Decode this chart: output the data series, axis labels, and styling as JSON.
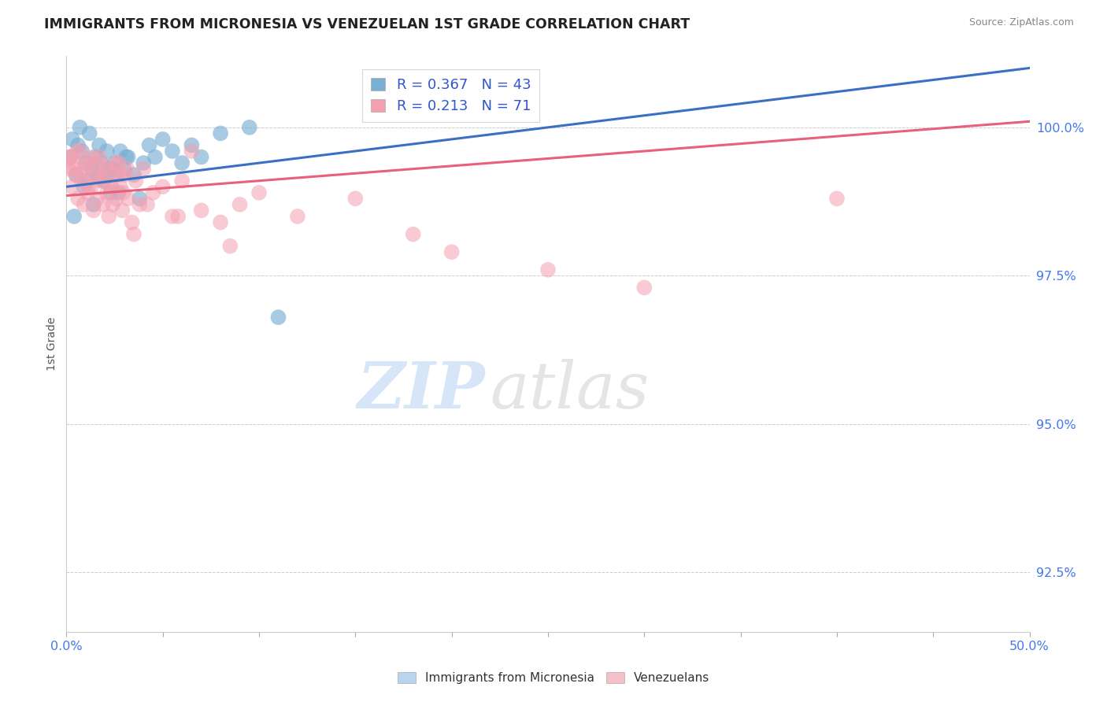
{
  "title": "IMMIGRANTS FROM MICRONESIA VS VENEZUELAN 1ST GRADE CORRELATION CHART",
  "source": "Source: ZipAtlas.com",
  "ylabel": "1st Grade",
  "xlim": [
    0.0,
    50.0
  ],
  "ylim": [
    91.5,
    101.2
  ],
  "yticks": [
    92.5,
    95.0,
    97.5,
    100.0
  ],
  "ytick_labels": [
    "92.5%",
    "95.0%",
    "97.5%",
    "100.0%"
  ],
  "xticks": [
    0.0,
    5.0,
    10.0,
    15.0,
    20.0,
    25.0,
    30.0,
    35.0,
    40.0,
    45.0,
    50.0
  ],
  "xtick_labels_show": [
    "0.0%",
    "50.0%"
  ],
  "blue_r": 0.367,
  "blue_n": 43,
  "pink_r": 0.213,
  "pink_n": 71,
  "blue_color": "#7aafd4",
  "pink_color": "#f4a0b0",
  "blue_line_color": "#3a6fc4",
  "pink_line_color": "#e8607a",
  "legend_label_blue": "Immigrants from Micronesia",
  "legend_label_pink": "Venezuelans",
  "blue_scatter_x": [
    0.2,
    0.3,
    0.5,
    0.6,
    0.7,
    0.8,
    1.0,
    1.1,
    1.2,
    1.3,
    1.5,
    1.6,
    1.7,
    1.8,
    2.0,
    2.1,
    2.2,
    2.3,
    2.5,
    2.6,
    2.8,
    3.0,
    3.2,
    3.5,
    3.8,
    4.0,
    4.3,
    4.6,
    5.0,
    5.5,
    6.0,
    6.5,
    7.0,
    8.0,
    9.5,
    1.4,
    1.9,
    2.4,
    2.7,
    3.1,
    0.4,
    0.9,
    11.0
  ],
  "blue_scatter_y": [
    99.5,
    99.8,
    99.2,
    99.7,
    100.0,
    99.6,
    99.4,
    99.1,
    99.9,
    99.3,
    99.5,
    99.2,
    99.7,
    99.4,
    99.1,
    99.6,
    99.3,
    98.9,
    99.4,
    99.2,
    99.6,
    99.3,
    99.5,
    99.2,
    98.8,
    99.4,
    99.7,
    99.5,
    99.8,
    99.6,
    99.4,
    99.7,
    99.5,
    99.9,
    100.0,
    98.7,
    99.1,
    99.3,
    98.9,
    99.5,
    98.5,
    99.0,
    96.8
  ],
  "pink_scatter_x": [
    0.1,
    0.2,
    0.3,
    0.4,
    0.5,
    0.6,
    0.7,
    0.8,
    0.9,
    1.0,
    1.1,
    1.2,
    1.3,
    1.4,
    1.5,
    1.6,
    1.7,
    1.8,
    1.9,
    2.0,
    2.1,
    2.2,
    2.3,
    2.4,
    2.5,
    2.6,
    2.7,
    2.8,
    2.9,
    3.0,
    3.2,
    3.4,
    3.6,
    3.8,
    4.0,
    4.5,
    5.0,
    5.5,
    6.0,
    7.0,
    8.0,
    9.0,
    10.0,
    12.0,
    15.0,
    18.0,
    20.0,
    25.0,
    30.0,
    40.0,
    0.15,
    0.35,
    0.55,
    0.75,
    0.95,
    1.15,
    1.35,
    1.55,
    1.75,
    1.95,
    2.15,
    2.35,
    2.55,
    2.75,
    2.95,
    3.15,
    4.2,
    5.8,
    3.5,
    6.5,
    8.5
  ],
  "pink_scatter_y": [
    99.3,
    99.5,
    99.0,
    99.4,
    99.2,
    98.8,
    99.6,
    99.1,
    98.7,
    99.3,
    98.9,
    99.4,
    99.0,
    98.6,
    99.2,
    98.8,
    99.5,
    99.1,
    98.7,
    99.3,
    98.9,
    98.5,
    99.0,
    98.7,
    99.2,
    98.8,
    99.4,
    99.0,
    98.6,
    99.2,
    98.8,
    98.4,
    99.1,
    98.7,
    99.3,
    98.9,
    99.0,
    98.5,
    99.1,
    98.6,
    98.4,
    98.7,
    98.9,
    98.5,
    98.8,
    98.2,
    97.9,
    97.6,
    97.3,
    98.8,
    99.5,
    99.3,
    99.6,
    99.2,
    99.4,
    99.0,
    99.5,
    99.2,
    99.4,
    99.1,
    99.3,
    99.0,
    99.4,
    99.2,
    98.9,
    99.3,
    98.7,
    98.5,
    98.2,
    99.6,
    98.0
  ],
  "blue_trend_x0": 0.0,
  "blue_trend_y0": 99.0,
  "blue_trend_x1": 50.0,
  "blue_trend_y1": 101.0,
  "pink_trend_x0": 0.0,
  "pink_trend_y0": 98.85,
  "pink_trend_x1": 50.0,
  "pink_trend_y1": 100.1
}
